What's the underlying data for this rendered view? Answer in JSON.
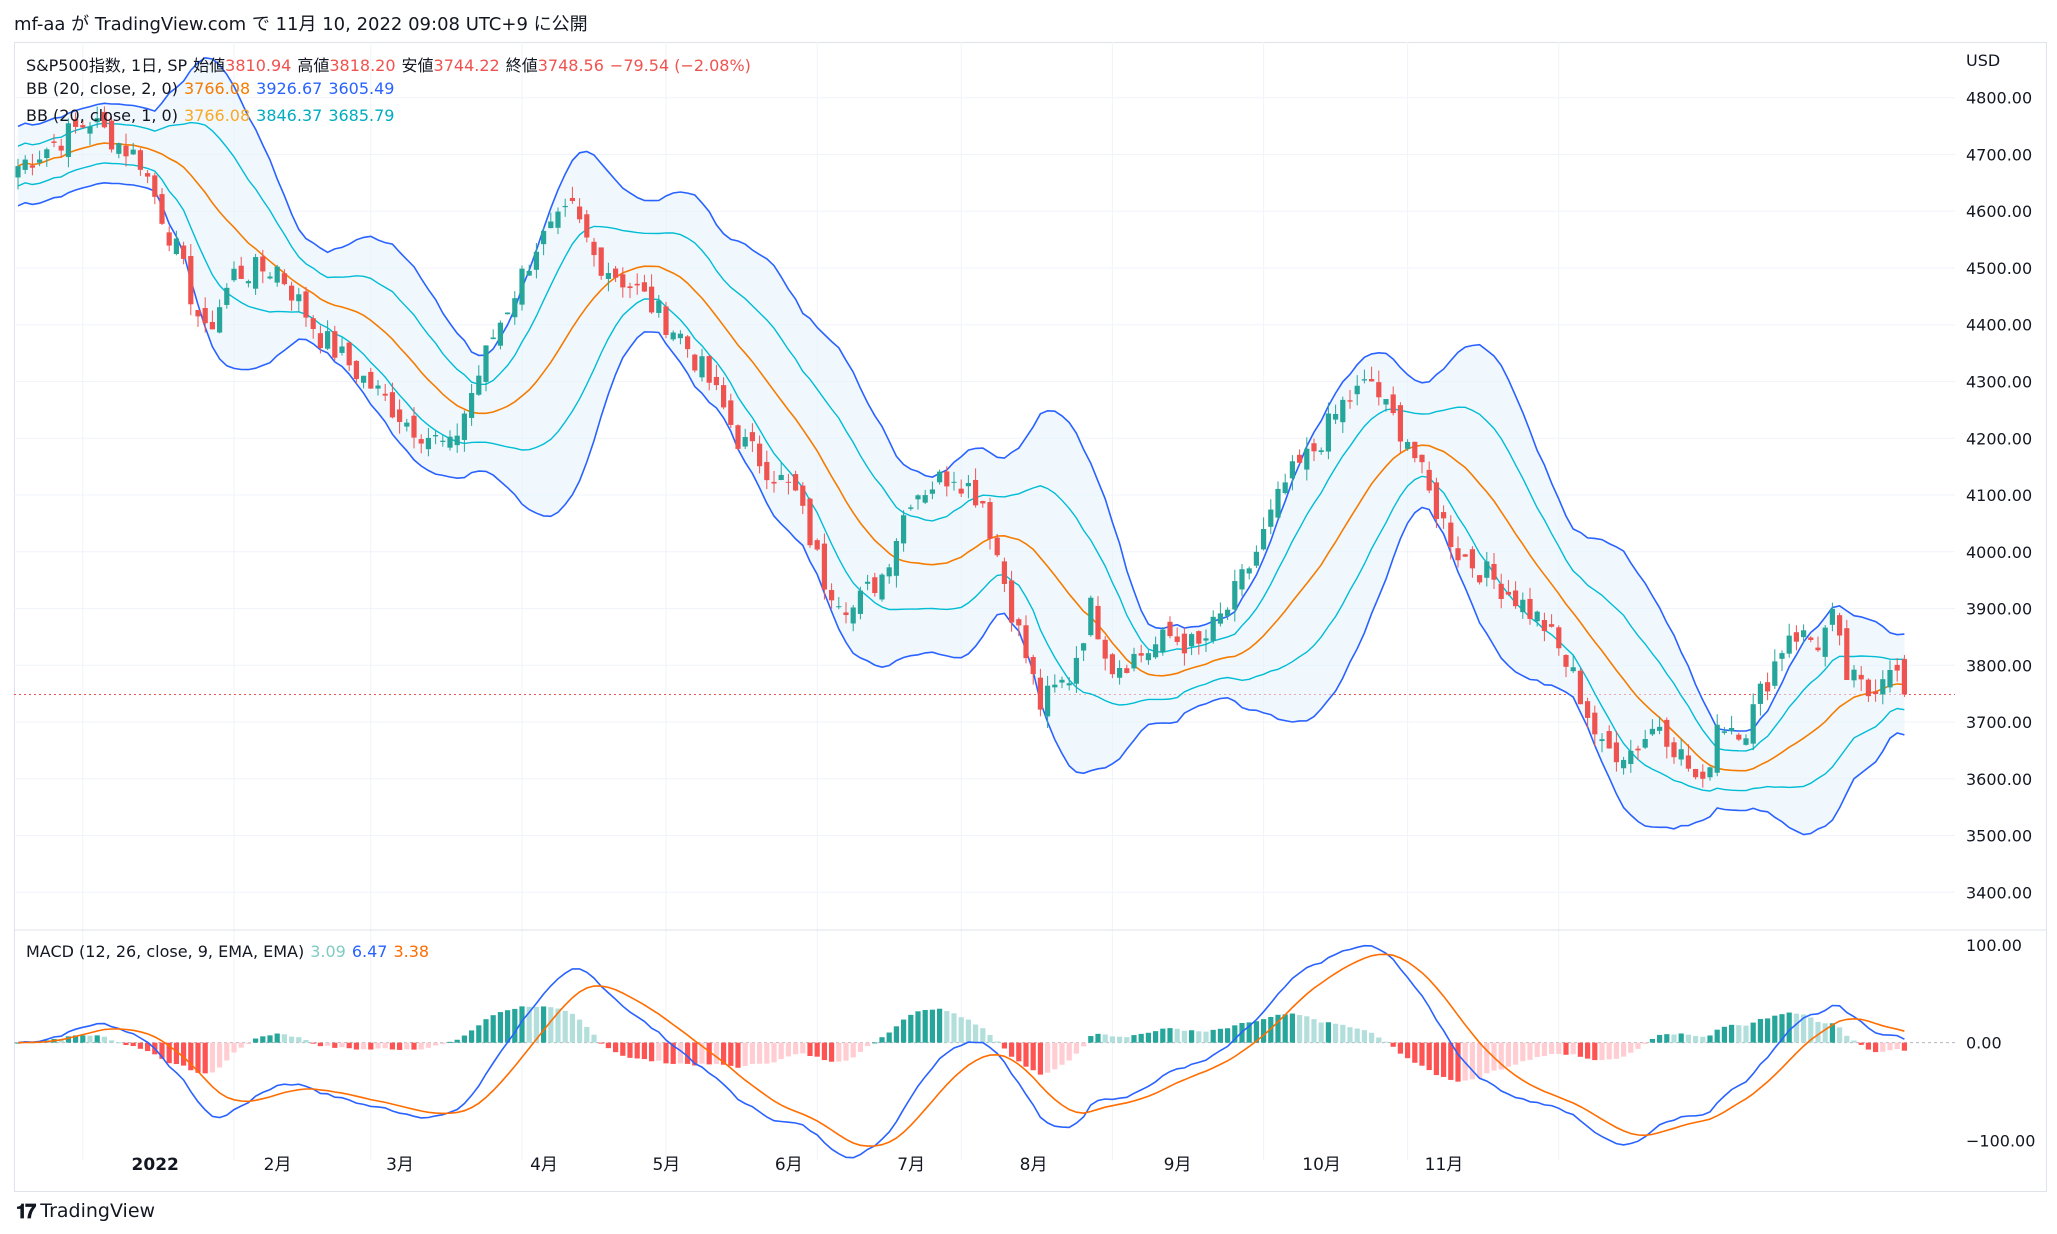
{
  "header": {
    "text": "mf-aa が TradingView.com で 11月 10, 2022 09:08 UTC+9 に公開"
  },
  "legend": {
    "symbol": "S&P500指数, 1日, SP",
    "open_label": "始値",
    "open": "3810.94",
    "high_label": "高値",
    "high": "3818.20",
    "low_label": "安値",
    "low": "3744.22",
    "close_label": "終値",
    "close": "3748.56",
    "change": "−79.54 (−2.08%)",
    "bb1_label": "BB (20, close, 2, 0)",
    "bb1_mid": "3766.08",
    "bb1_up": "3926.67",
    "bb1_low": "3605.49",
    "bb2_label": "BB (20, close, 1, 0)",
    "bb2_mid": "3766.08",
    "bb2_up": "3846.37",
    "bb2_low": "3685.79",
    "macd_label": "MACD (12, 26, close, 9, EMA, EMA)",
    "macd_hist": "3.09",
    "macd_line": "6.47",
    "macd_signal": "3.38"
  },
  "price_axis": {
    "currency": "USD",
    "ticks": [
      "4800.00",
      "4700.00",
      "4600.00",
      "4500.00",
      "4400.00",
      "4300.00",
      "4200.00",
      "4100.00",
      "4000.00",
      "3900.00",
      "3800.00",
      "3700.00",
      "3600.00",
      "3500.00",
      "3400.00"
    ]
  },
  "macd_axis": {
    "ticks": [
      "100.00",
      "0.00",
      "−100.00"
    ]
  },
  "time_axis": {
    "labels": [
      "2022",
      "2月",
      "3月",
      "4月",
      "5月",
      "6月",
      "7月",
      "8月",
      "9月",
      "10月",
      "11月"
    ]
  },
  "colors": {
    "up": "#26a69a",
    "down": "#ef5350",
    "bb_basis": "#f57c00",
    "bb_outer": "#2962ff",
    "bb_inner": "#00bcd4",
    "band_fill": "#e3f2fd",
    "macd": "#2962ff",
    "signal": "#ff6d00",
    "hist_pos_strong": "#26a69a",
    "hist_pos_weak": "#b2dfdb",
    "hist_neg_strong": "#ff5252",
    "hist_neg_weak": "#ffcdd2"
  },
  "footer": {
    "brand": "TradingView",
    "logo_icon": "tradingview-logo-icon"
  },
  "chart_data": {
    "type": "candlestick",
    "title": "S&P500指数, 1日, SP",
    "ylabel": "USD",
    "ylim": [
      3360,
      4870
    ],
    "macd_ylim": [
      -120,
      105
    ],
    "x_months": [
      "2022",
      "2月",
      "3月",
      "4月",
      "5月",
      "6月",
      "7月",
      "8月",
      "9月",
      "10月",
      "11月"
    ],
    "anchors": [
      [
        0,
        4680
      ],
      [
        10,
        4760
      ],
      [
        14,
        4720
      ],
      [
        17,
        4690
      ],
      [
        22,
        4530
      ],
      [
        26,
        4380
      ],
      [
        30,
        4490
      ],
      [
        36,
        4500
      ],
      [
        42,
        4380
      ],
      [
        50,
        4280
      ],
      [
        54,
        4230
      ],
      [
        60,
        4180
      ],
      [
        66,
        4380
      ],
      [
        72,
        4540
      ],
      [
        77,
        4600
      ],
      [
        80,
        4520
      ],
      [
        86,
        4460
      ],
      [
        92,
        4380
      ],
      [
        96,
        4300
      ],
      [
        100,
        4200
      ],
      [
        104,
        4150
      ],
      [
        108,
        4100
      ],
      [
        112,
        3950
      ],
      [
        116,
        3900
      ],
      [
        120,
        3960
      ],
      [
        124,
        4100
      ],
      [
        130,
        4140
      ],
      [
        134,
        4090
      ],
      [
        138,
        3900
      ],
      [
        142,
        3730
      ],
      [
        146,
        3780
      ],
      [
        149,
        3900
      ],
      [
        152,
        3800
      ],
      [
        156,
        3820
      ],
      [
        160,
        3850
      ],
      [
        164,
        3830
      ],
      [
        168,
        3900
      ],
      [
        172,
        4000
      ],
      [
        176,
        4120
      ],
      [
        180,
        4180
      ],
      [
        184,
        4260
      ],
      [
        188,
        4300
      ],
      [
        190,
        4250
      ],
      [
        193,
        4200
      ],
      [
        196,
        4100
      ],
      [
        200,
        4000
      ],
      [
        204,
        3960
      ],
      [
        208,
        3920
      ],
      [
        212,
        3870
      ],
      [
        216,
        3780
      ],
      [
        220,
        3650
      ],
      [
        224,
        3650
      ],
      [
        228,
        3700
      ],
      [
        232,
        3620
      ],
      [
        234,
        3580
      ],
      [
        236,
        3700
      ],
      [
        240,
        3690
      ],
      [
        242,
        3750
      ],
      [
        246,
        3860
      ],
      [
        250,
        3840
      ],
      [
        252,
        3880
      ],
      [
        254,
        3780
      ],
      [
        257,
        3750
      ],
      [
        260,
        3810
      ],
      [
        262,
        3749
      ]
    ],
    "last": {
      "open": 3810.94,
      "high": 3818.2,
      "low": 3744.22,
      "close": 3748.56
    },
    "bb_2sd": {
      "basis": 3766.08,
      "upper": 3926.67,
      "lower": 3605.49
    },
    "bb_1sd": {
      "basis": 3766.08,
      "upper": 3846.37,
      "lower": 3685.79
    },
    "macd": {
      "histogram": 3.09,
      "macd": 6.47,
      "signal": 3.38
    }
  }
}
